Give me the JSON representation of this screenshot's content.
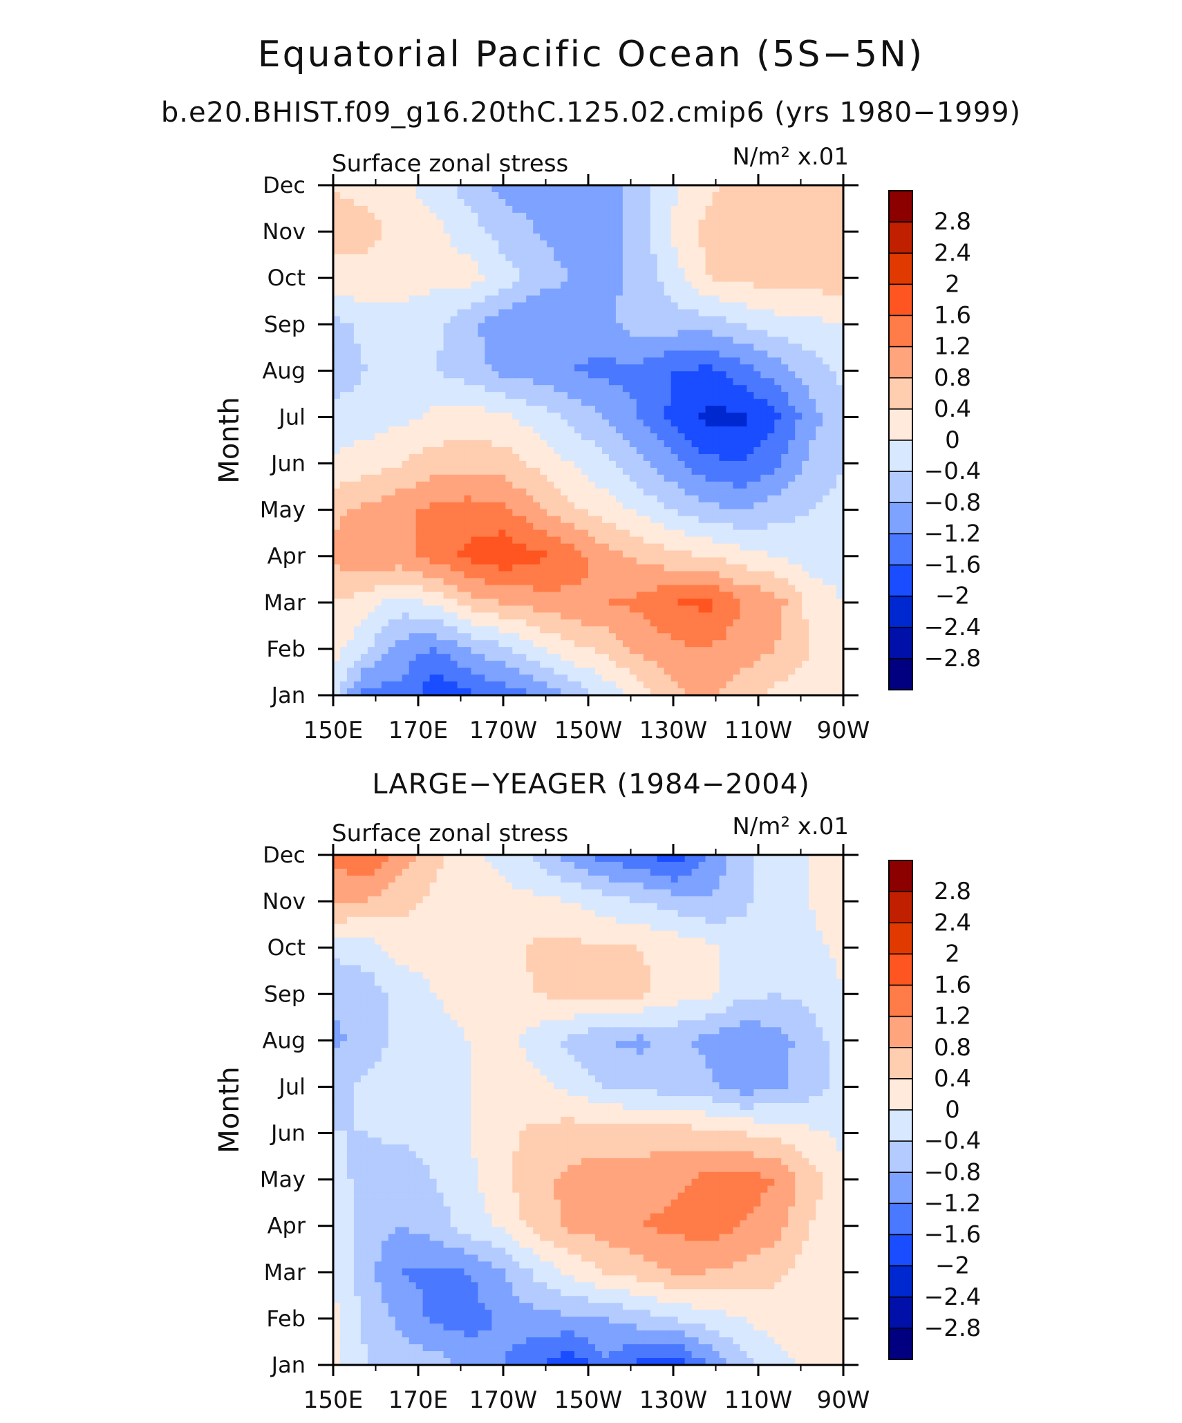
{
  "title": "Equatorial Pacific Ocean (5S−5N)",
  "subtitle": "b.e20.BHIST.f09_g16.20thC.125.02.cmip6 (yrs 1980−1999)",
  "second_title": "LARGE−YEAGER (1984−2004)",
  "colors": {
    "levels": [
      "#000080",
      "#0010a8",
      "#0028d0",
      "#1a4dff",
      "#4a78ff",
      "#7da2ff",
      "#b3cbff",
      "#d8e8ff",
      "#ffeadb",
      "#ffcdb0",
      "#ffa47c",
      "#ff7b48",
      "#ff5520",
      "#e03a00",
      "#c02000",
      "#8c0000"
    ]
  },
  "chart_data": [
    {
      "type": "heatmap",
      "panel_label": "Surface zonal stress",
      "units": "N/m² x.01",
      "ylabel": "Month",
      "xlabel": "",
      "x_ticks": [
        "150E",
        "170E",
        "170W",
        "150W",
        "130W",
        "110W",
        "90W"
      ],
      "x_values_deg_e": [
        150,
        170,
        190,
        210,
        230,
        250,
        270
      ],
      "y_ticks": [
        "Jan",
        "Feb",
        "Mar",
        "Apr",
        "May",
        "Jun",
        "Jul",
        "Aug",
        "Sep",
        "Oct",
        "Nov",
        "Dec"
      ],
      "colorbar_levels": [
        "2.8",
        "2.4",
        "2",
        "1.6",
        "1.2",
        "0.8",
        "0.4",
        "0",
        "−0.4",
        "−0.8",
        "−1.2",
        "−1.6",
        "−2",
        "−2.4",
        "−2.8"
      ],
      "z": [
        [
          -0.3,
          -1.4,
          -1.3,
          -1.9,
          -1.7,
          -1.4,
          -1.2,
          -0.7,
          -0.3,
          0.2,
          0.7,
          0.9,
          0.6,
          0.3,
          0.2,
          0.1
        ],
        [
          0.2,
          -0.4,
          -1.0,
          -1.2,
          -0.8,
          -0.5,
          -0.1,
          0.3,
          0.5,
          0.9,
          1.1,
          1.2,
          1.0,
          0.8,
          0.4,
          0.2
        ],
        [
          0.4,
          0.2,
          -0.2,
          0.1,
          0.6,
          0.8,
          1.0,
          1.1,
          1.2,
          1.3,
          1.6,
          1.7,
          1.2,
          1.0,
          0.3,
          0.0
        ],
        [
          0.9,
          1.1,
          1.1,
          1.4,
          1.7,
          1.9,
          1.7,
          1.4,
          1.0,
          0.7,
          0.5,
          0.4,
          0.2,
          0.0,
          -0.2,
          -0.2
        ],
        [
          0.7,
          0.9,
          1.1,
          1.3,
          1.4,
          1.3,
          0.9,
          0.5,
          0.2,
          -0.1,
          -0.4,
          -0.7,
          -0.8,
          -0.6,
          -0.4,
          -0.3
        ],
        [
          0.1,
          0.2,
          0.4,
          0.6,
          0.6,
          0.6,
          0.3,
          0.0,
          -0.3,
          -0.7,
          -1.1,
          -1.5,
          -1.6,
          -1.3,
          -0.7,
          -0.4
        ],
        [
          -0.3,
          -0.2,
          -0.1,
          0.1,
          0.2,
          0.1,
          -0.2,
          -0.5,
          -0.8,
          -1.2,
          -1.7,
          -2.1,
          -2.1,
          -1.7,
          -1.0,
          -0.5
        ],
        [
          -0.6,
          -0.4,
          -0.3,
          -0.4,
          -0.6,
          -0.9,
          -1.0,
          -1.2,
          -1.3,
          -1.3,
          -1.6,
          -1.7,
          -1.4,
          -1.0,
          -0.6,
          -0.3
        ],
        [
          -0.5,
          -0.3,
          -0.2,
          -0.3,
          -0.7,
          -1.1,
          -1.2,
          -1.1,
          -0.9,
          -0.6,
          -0.6,
          -0.6,
          -0.4,
          -0.2,
          -0.1,
          0.0
        ],
        [
          0.3,
          0.3,
          0.2,
          0.1,
          0.2,
          -0.2,
          -0.6,
          -0.8,
          -0.9,
          -0.7,
          -0.2,
          0.4,
          0.5,
          0.6,
          0.6,
          0.6
        ],
        [
          0.5,
          0.5,
          0.3,
          0.1,
          -0.2,
          -0.6,
          -0.8,
          -1.0,
          -1.0,
          -0.6,
          0.1,
          0.5,
          0.7,
          0.7,
          0.7,
          0.6
        ],
        [
          0.4,
          0.3,
          0.1,
          -0.2,
          -0.6,
          -0.9,
          -1.0,
          -1.0,
          -1.0,
          -0.6,
          -0.1,
          0.3,
          0.6,
          0.6,
          0.6,
          0.5
        ]
      ]
    },
    {
      "type": "heatmap",
      "panel_label": "Surface zonal stress",
      "units": "N/m² x.01",
      "ylabel": "Month",
      "xlabel": "",
      "x_ticks": [
        "150E",
        "170E",
        "170W",
        "150W",
        "130W",
        "110W",
        "90W"
      ],
      "x_values_deg_e": [
        150,
        170,
        190,
        210,
        230,
        250,
        270
      ],
      "y_ticks": [
        "Jan",
        "Feb",
        "Mar",
        "Apr",
        "May",
        "Jun",
        "Jul",
        "Aug",
        "Sep",
        "Oct",
        "Nov",
        "Dec"
      ],
      "colorbar_levels": [
        "2.8",
        "2.4",
        "2",
        "1.6",
        "1.2",
        "0.8",
        "0.4",
        "0",
        "−0.4",
        "−0.8",
        "−1.2",
        "−1.6",
        "−2",
        "−2.4",
        "−2.8"
      ],
      "z": [
        [
          0.1,
          -0.4,
          -0.6,
          -0.6,
          -0.9,
          -1.2,
          -1.6,
          -1.9,
          -1.3,
          -1.7,
          -1.9,
          -1.2,
          -0.6,
          -0.2,
          0.1,
          0.2
        ],
        [
          0.1,
          -0.5,
          -0.9,
          -1.3,
          -1.4,
          -1.1,
          -0.9,
          -0.9,
          -0.8,
          -0.6,
          -0.4,
          -0.2,
          0.0,
          0.2,
          0.3,
          0.1
        ],
        [
          0.0,
          -0.7,
          -1.2,
          -1.3,
          -1.2,
          -0.8,
          -0.3,
          0.1,
          0.4,
          0.6,
          0.8,
          0.8,
          0.7,
          0.5,
          0.2,
          0.0
        ],
        [
          -0.1,
          -0.6,
          -0.8,
          -0.6,
          -0.2,
          0.1,
          0.6,
          0.9,
          1.0,
          1.2,
          1.3,
          1.4,
          1.2,
          1.0,
          0.4,
          0.1
        ],
        [
          -0.3,
          -0.5,
          -0.7,
          -0.4,
          -0.1,
          0.3,
          0.7,
          0.9,
          1.0,
          1.0,
          1.1,
          1.3,
          1.4,
          1.2,
          0.6,
          0.1
        ],
        [
          -0.4,
          -0.4,
          -0.3,
          -0.2,
          0.0,
          0.3,
          0.5,
          0.6,
          0.6,
          0.6,
          0.6,
          0.5,
          0.4,
          0.3,
          0.1,
          -0.1
        ],
        [
          -0.6,
          -0.3,
          -0.2,
          -0.1,
          0.0,
          0.1,
          0.1,
          -0.1,
          -0.4,
          -0.5,
          -0.6,
          -0.7,
          -1.0,
          -0.9,
          -0.6,
          -0.2
        ],
        [
          -0.9,
          -0.6,
          -0.3,
          -0.1,
          0.0,
          0.2,
          -0.2,
          -0.5,
          -0.8,
          -0.9,
          -0.7,
          -0.9,
          -1.1,
          -1.0,
          -0.6,
          -0.2
        ],
        [
          -0.7,
          -0.6,
          -0.3,
          0.0,
          0.1,
          0.3,
          0.4,
          0.5,
          0.6,
          0.5,
          0.2,
          0.1,
          -0.3,
          -0.4,
          -0.3,
          0.0
        ],
        [
          -0.3,
          -0.2,
          0.2,
          0.2,
          0.1,
          0.2,
          0.5,
          0.5,
          0.4,
          0.4,
          0.3,
          0.1,
          -0.2,
          -0.3,
          -0.1,
          0.1
        ],
        [
          0.9,
          0.8,
          0.5,
          0.3,
          0.2,
          0.1,
          0.1,
          0.0,
          -0.2,
          -0.4,
          -0.6,
          -0.8,
          -0.5,
          -0.2,
          0.0,
          0.3
        ],
        [
          1.3,
          1.6,
          1.0,
          0.5,
          0.1,
          -0.1,
          -0.5,
          -1.0,
          -1.4,
          -1.5,
          -1.9,
          -1.2,
          -0.6,
          -0.1,
          0.0,
          0.1
        ]
      ]
    }
  ]
}
